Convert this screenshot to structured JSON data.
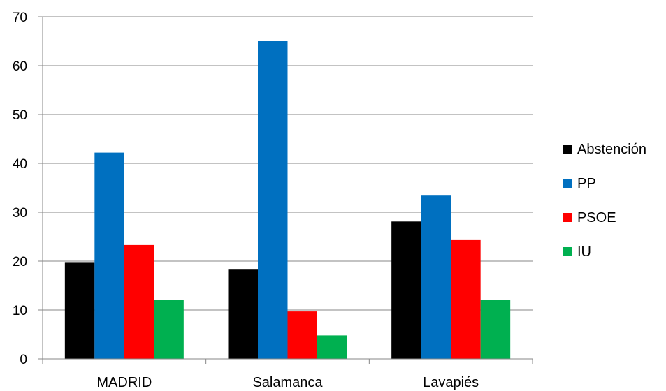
{
  "chart_data": {
    "type": "bar",
    "title": "",
    "xlabel": "",
    "ylabel": "",
    "categories": [
      "MADRID",
      "Salamanca",
      "Lavapiés"
    ],
    "series": [
      {
        "name": "Abstención",
        "color": "#000000",
        "values": [
          19.8,
          18.4,
          28.1
        ]
      },
      {
        "name": "PP",
        "color": "#0070C0",
        "values": [
          42.2,
          65.0,
          33.4
        ]
      },
      {
        "name": "PSOE",
        "color": "#FF0000",
        "values": [
          23.3,
          9.7,
          24.3
        ]
      },
      {
        "name": "IU",
        "color": "#00B050",
        "values": [
          12.1,
          4.8,
          12.1
        ]
      }
    ],
    "ylim": [
      0,
      70
    ],
    "yticks": [
      "0",
      "10",
      "20",
      "30",
      "40",
      "50",
      "60",
      "70"
    ],
    "grid": true,
    "legend": "right"
  }
}
